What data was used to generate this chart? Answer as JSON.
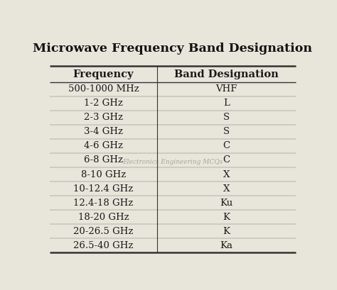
{
  "title": "Microwave Frequency Band Designation",
  "col1_header": "Frequency",
  "col2_header": "Band Designation",
  "rows": [
    [
      "500-1000 MHz",
      "VHF"
    ],
    [
      "1-2 GHz",
      "L"
    ],
    [
      "2-3 GHz",
      "S"
    ],
    [
      "3-4 GHz",
      "S"
    ],
    [
      "4-6 GHz",
      "C"
    ],
    [
      "6-8 GHz",
      "C"
    ],
    [
      "8-10 GHz",
      "X"
    ],
    [
      "10-12.4 GHz",
      "X"
    ],
    [
      "12.4-18 GHz",
      "Ku"
    ],
    [
      "18-20 GHz",
      "K"
    ],
    [
      "20-26.5 GHz",
      "K"
    ],
    [
      "26.5-40 GHz",
      "Ka"
    ]
  ],
  "watermark": "Electronics Engineering MCQs",
  "bg_color": "#e8e5db",
  "table_bg": "#e8e5db",
  "title_fontsize": 12.5,
  "header_fontsize": 10.5,
  "cell_fontsize": 9.5,
  "watermark_fontsize": 6.5,
  "text_color": "#1a1a1a",
  "line_color": "#333333",
  "title_color": "#111111",
  "col_split": 0.44
}
